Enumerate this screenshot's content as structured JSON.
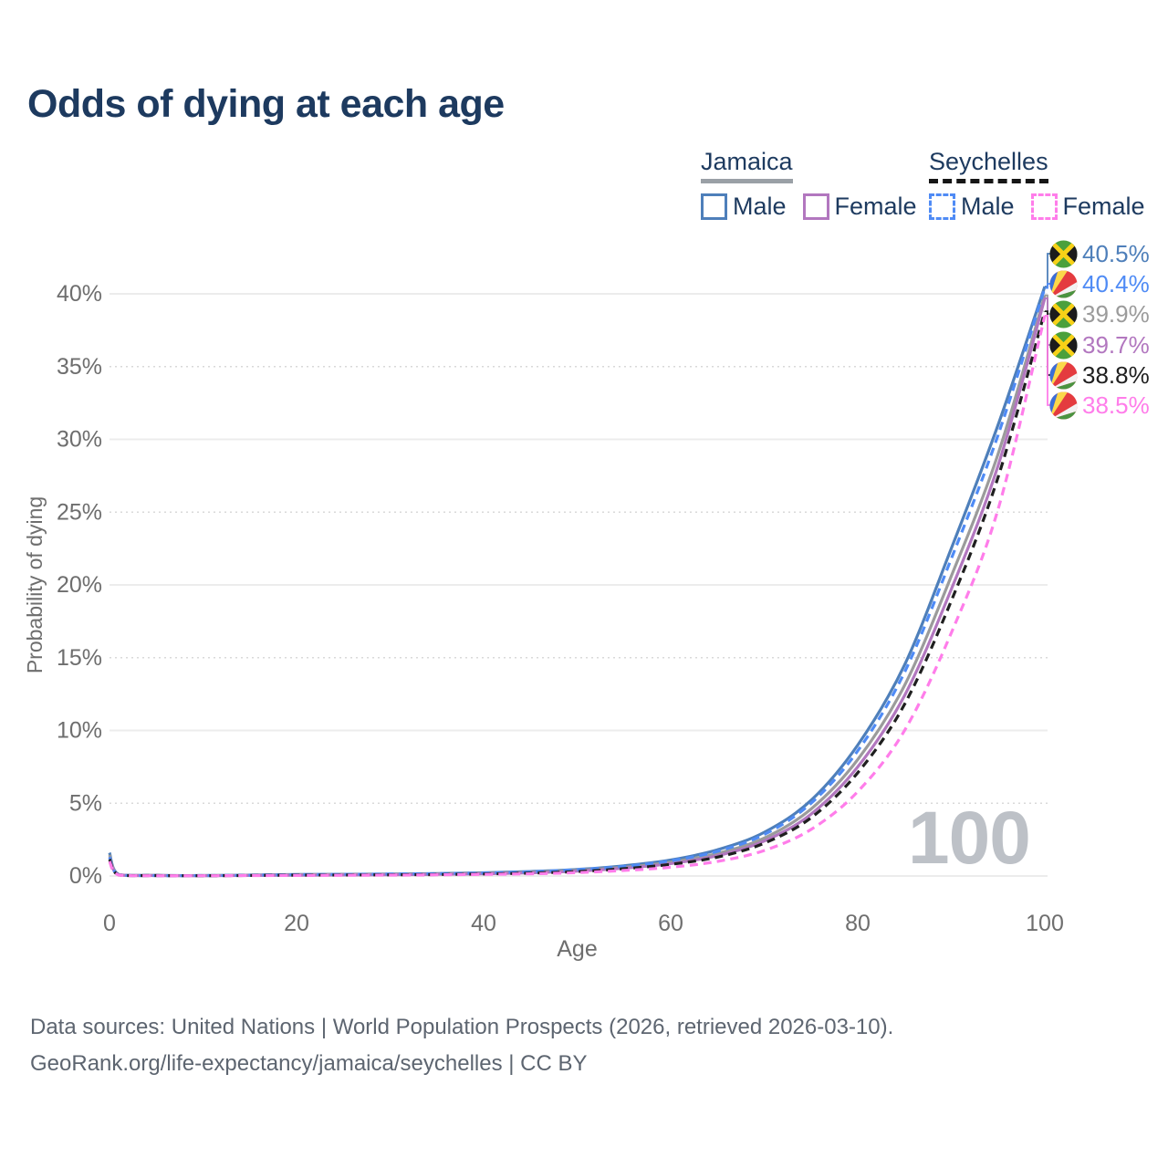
{
  "title": "Odds of dying at each age",
  "legend": {
    "jamaica": {
      "label": "Jamaica",
      "male": "Male",
      "female": "Female"
    },
    "seychelles": {
      "label": "Seychelles",
      "male": "Male",
      "female": "Female"
    }
  },
  "right_labels": [
    {
      "flag": "jamaica",
      "series": "Jamaica Male",
      "value": "40.5%",
      "color": "#4e7fba"
    },
    {
      "flag": "seychelles",
      "series": "Seychelles Male",
      "value": "40.4%",
      "color": "#4f8bf5"
    },
    {
      "flag": "jamaica",
      "series": "Jamaica Both sexes",
      "value": "39.9%",
      "color": "#9b9b9b"
    },
    {
      "flag": "jamaica",
      "series": "Jamaica Female",
      "value": "39.7%",
      "color": "#b277bf"
    },
    {
      "flag": "seychelles",
      "series": "Seychelles Both sexes",
      "value": "38.8%",
      "color": "#1f1f1f"
    },
    {
      "flag": "seychelles",
      "series": "Seychelles Female",
      "value": "38.5%",
      "color": "#ff7dea"
    }
  ],
  "watermark": "100",
  "footer": {
    "line1": "Data sources: United Nations | World Population Prospects (2026, retrieved 2026-03-10).",
    "line2": "GeoRank.org/life-expectancy/jamaica/seychelles | CC BY"
  },
  "colors": {
    "title_text": "#1d3a5f",
    "axis_text": "#6e6e6e",
    "grid_major": "#ececec",
    "grid_minor_dotted": "#d9d9d9",
    "watermark": "#bdc1c7",
    "jamaica_male": "#4e7fba",
    "jamaica_female": "#b277bf",
    "jamaica_both": "#9b9b9b",
    "seychelles_male": "#4f8bf5",
    "seychelles_female": "#ff7dea",
    "seychelles_both": "#1f1f1f"
  },
  "chart_data": {
    "type": "line",
    "title": "Odds of dying at each age",
    "xlabel": "Age",
    "ylabel": "Probability of dying",
    "xlim": [
      0,
      100
    ],
    "ylim_pct": [
      0,
      42
    ],
    "xticks": [
      0,
      20,
      40,
      60,
      80,
      100
    ],
    "yticks_pct": [
      0,
      5,
      10,
      15,
      20,
      25,
      30,
      35,
      40
    ],
    "ytick_suffix": "%",
    "grid": "horizontal only; solid lines at 0/10/20/30/40%, dotted at 5/15/25/35%",
    "legend_position": "top-right",
    "age_counter_annotation": "100",
    "ages": [
      0,
      1,
      5,
      10,
      15,
      20,
      25,
      30,
      35,
      40,
      45,
      50,
      55,
      60,
      65,
      70,
      75,
      80,
      85,
      90,
      95,
      100
    ],
    "series": [
      {
        "name": "Jamaica Male",
        "country": "Jamaica",
        "sex": "male",
        "style": "solid",
        "color": "#4e7fba",
        "end_label": "40.5%",
        "values_pct": [
          1.6,
          0.1,
          0.04,
          0.03,
          0.06,
          0.1,
          0.12,
          0.14,
          0.17,
          0.22,
          0.31,
          0.45,
          0.7,
          1.1,
          1.8,
          3.0,
          5.2,
          9.0,
          14.5,
          22.5,
          31.0,
          40.5
        ]
      },
      {
        "name": "Seychelles Male",
        "country": "Seychelles",
        "sex": "male",
        "style": "dashed",
        "color": "#4f8bf5",
        "end_label": "40.4%",
        "values_pct": [
          1.3,
          0.08,
          0.03,
          0.03,
          0.05,
          0.09,
          0.11,
          0.13,
          0.16,
          0.21,
          0.29,
          0.43,
          0.66,
          1.05,
          1.7,
          2.85,
          5.0,
          8.6,
          14.0,
          21.8,
          30.3,
          40.4
        ]
      },
      {
        "name": "Jamaica Both sexes",
        "country": "Jamaica",
        "sex": "both",
        "style": "solid",
        "color": "#9b9b9b",
        "end_label": "39.9%",
        "values_pct": [
          1.45,
          0.09,
          0.035,
          0.03,
          0.05,
          0.08,
          0.1,
          0.11,
          0.14,
          0.18,
          0.26,
          0.38,
          0.6,
          0.95,
          1.55,
          2.6,
          4.6,
          8.0,
          13.1,
          20.6,
          29.0,
          39.9
        ]
      },
      {
        "name": "Jamaica Female",
        "country": "Jamaica",
        "sex": "female",
        "style": "solid",
        "color": "#b277bf",
        "end_label": "39.7%",
        "values_pct": [
          1.3,
          0.08,
          0.03,
          0.02,
          0.04,
          0.05,
          0.07,
          0.08,
          0.11,
          0.15,
          0.22,
          0.33,
          0.54,
          0.85,
          1.4,
          2.4,
          4.25,
          7.5,
          12.4,
          19.7,
          28.2,
          39.7
        ]
      },
      {
        "name": "Seychelles Both sexes",
        "country": "Seychelles",
        "sex": "both",
        "style": "dashed",
        "color": "#1f1f1f",
        "end_label": "38.8%",
        "values_pct": [
          1.15,
          0.07,
          0.03,
          0.02,
          0.04,
          0.06,
          0.07,
          0.08,
          0.1,
          0.14,
          0.2,
          0.31,
          0.5,
          0.8,
          1.3,
          2.25,
          4.0,
          7.1,
          11.8,
          18.9,
          27.4,
          38.8
        ]
      },
      {
        "name": "Seychelles Female",
        "country": "Seychelles",
        "sex": "female",
        "style": "dashed",
        "color": "#ff7dea",
        "end_label": "38.5%",
        "values_pct": [
          1.0,
          0.06,
          0.02,
          0.02,
          0.03,
          0.04,
          0.05,
          0.06,
          0.08,
          0.11,
          0.15,
          0.23,
          0.38,
          0.6,
          1.0,
          1.75,
          3.2,
          5.8,
          10.0,
          16.7,
          25.2,
          38.5
        ]
      }
    ]
  }
}
